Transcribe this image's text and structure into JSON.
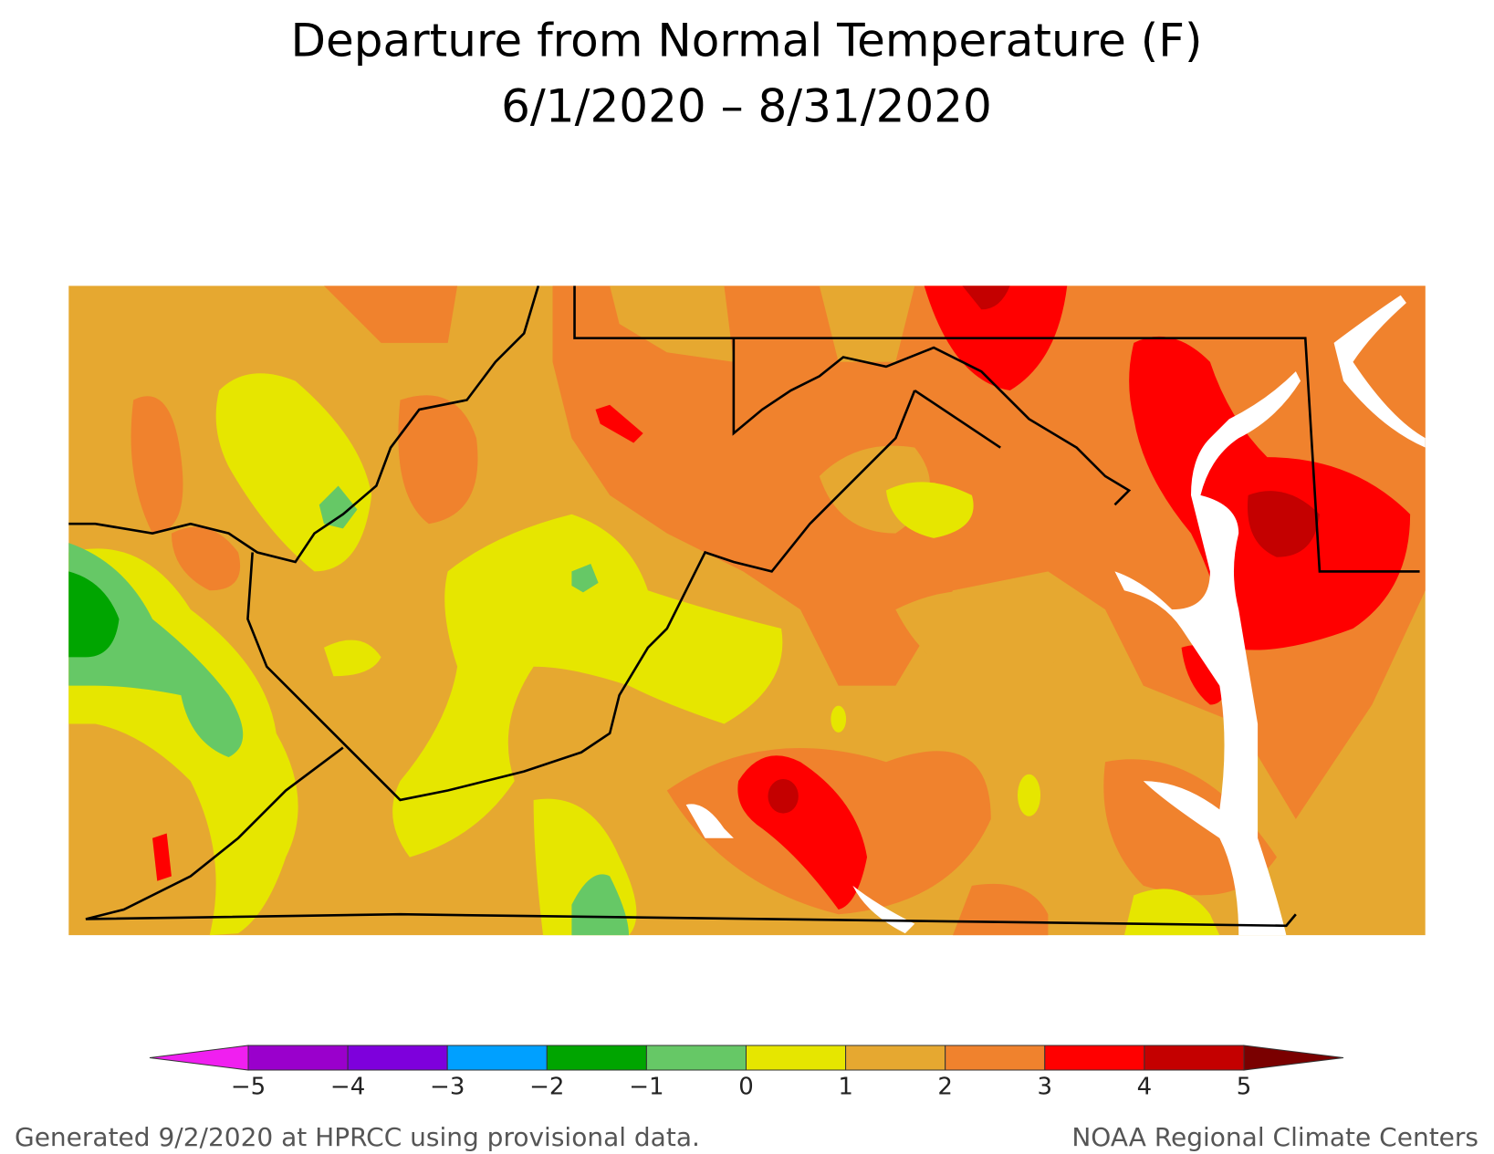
{
  "title": "Departure from Normal Temperature (F)",
  "subtitle": "6/1/2020 – 8/31/2020",
  "colorbar": {
    "labels": [
      "−5",
      "−4",
      "−3",
      "−2",
      "−1",
      "0",
      "1",
      "2",
      "3",
      "4",
      "5"
    ],
    "under_color": "#f01ff0",
    "colors": [
      "#9a00cc",
      "#7e00dc",
      "#00a0ff",
      "#00a500",
      "#66c866",
      "#e6e600",
      "#e6a830",
      "#f0822d",
      "#ff0000",
      "#c40000"
    ],
    "over_color": "#7a0000"
  },
  "footer_left": "Generated 9/2/2020 at HPRCC using provisional data.",
  "footer_right": "NOAA Regional Climate Centers"
}
